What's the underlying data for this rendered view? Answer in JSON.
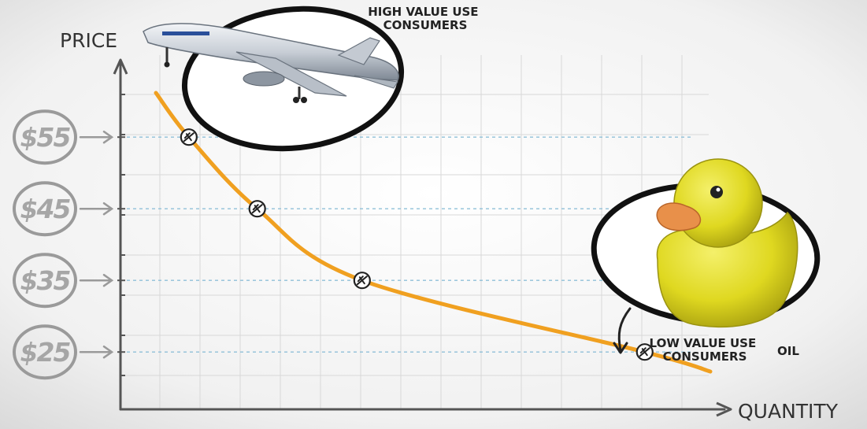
{
  "chart_data": {
    "type": "line",
    "xlabel": "QUANTITY",
    "ylabel": "PRICE",
    "y_ticks": [
      "$55",
      "$45",
      "$35",
      "$25"
    ],
    "y_tick_values": [
      55,
      45,
      35,
      25
    ],
    "ylim": [
      17,
      67
    ],
    "xlim": [
      0,
      10
    ],
    "grid": true,
    "series": [
      {
        "x": [
          1.5,
          3.0,
          5.3,
          11.5
        ],
        "y": [
          55,
          45,
          35,
          25
        ]
      }
    ],
    "annotations": {
      "high": "HIGH VALUE USE\nCONSUMERS",
      "low": "LOW VALUE USE\nCONSUMERS",
      "oil": "OIL"
    }
  },
  "colors": {
    "curve": "#f0a020",
    "axis": "#555555",
    "grid": "#d8d8d8",
    "guide": "#8fc0d8",
    "badge": "#9a9a9a",
    "duck": "#e8e030",
    "beak": "#e8904a"
  },
  "icons": [
    "airplane-picture",
    "rubber-duck-picture"
  ]
}
